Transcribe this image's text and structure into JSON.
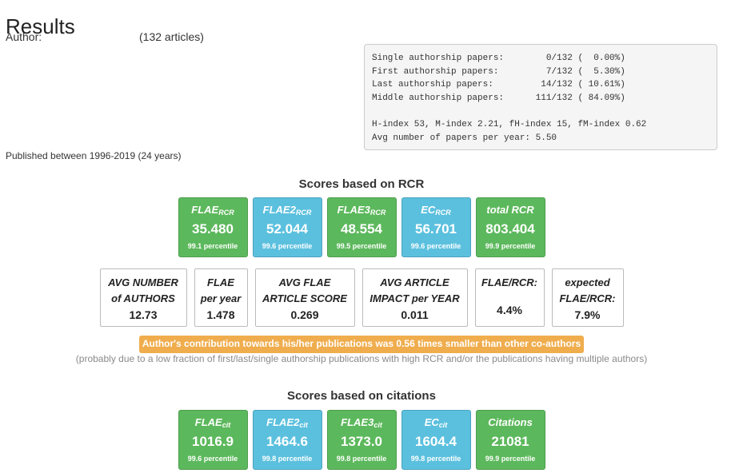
{
  "page": {
    "title": "Results",
    "author_label": "Author:",
    "article_count": "(132 articles)",
    "published": "Published between 1996-2019 (24 years)"
  },
  "stats": {
    "lines": [
      "Single authorship papers:        0/132 (  0.00%)",
      "First authorship papers:         7/132 (  5.30%)",
      "Last authorship papers:         14/132 ( 10.61%)",
      "Middle authorship papers:      111/132 ( 84.09%)",
      "",
      "H-index 53, M-index 2.21, fH-index 15, fM-index 0.62",
      "Avg number of papers per year: 5.50"
    ]
  },
  "rcr": {
    "title": "Scores based on RCR",
    "boxes": [
      {
        "label": "FLAE",
        "sub": "RCR",
        "value": "35.480",
        "percentile": "99.1 percentile",
        "color": "green"
      },
      {
        "label": "FLAE2",
        "sub": "RCR",
        "value": "52.044",
        "percentile": "99.6 percentile",
        "color": "blue"
      },
      {
        "label": "FLAE3",
        "sub": "RCR",
        "value": "48.554",
        "percentile": "99.5 percentile",
        "color": "green"
      },
      {
        "label": "EC",
        "sub": "RCR",
        "value": "56.701",
        "percentile": "99.6 percentile",
        "color": "blue"
      },
      {
        "label": "total RCR",
        "sub": "",
        "value": "803.404",
        "percentile": "99.9 percentile",
        "color": "green"
      }
    ]
  },
  "avg": {
    "boxes": [
      {
        "line1": "AVG NUMBER",
        "line2": "of AUTHORS",
        "value": "12.73"
      },
      {
        "line1": "FLAE",
        "line2": "per year",
        "value": "1.478"
      },
      {
        "line1": "AVG FLAE",
        "line2": "ARTICLE SCORE",
        "value": "0.269"
      },
      {
        "line1": "AVG ARTICLE",
        "line2": "IMPACT per YEAR",
        "value": "0.011"
      },
      {
        "line1": "FLAE/RCR:",
        "line2": "",
        "value": "4.4%"
      },
      {
        "line1": "expected",
        "line2": "FLAE/RCR:",
        "value": "7.9%"
      }
    ]
  },
  "banner": "Author's contribution towards his/her publications was 0.56 times smaller than other co-authors",
  "note": "(probably due to a low fraction of first/last/single authorship publications with high RCR and/or the publications having multiple authors)",
  "citations": {
    "title": "Scores based on citations",
    "boxes": [
      {
        "label": "FLAE",
        "sub": "cit",
        "value": "1016.9",
        "percentile": "99.6 percentile",
        "color": "green"
      },
      {
        "label": "FLAE2",
        "sub": "cit",
        "value": "1464.6",
        "percentile": "99.8 percentile",
        "color": "blue"
      },
      {
        "label": "FLAE3",
        "sub": "cit",
        "value": "1373.0",
        "percentile": "99.8 percentile",
        "color": "green"
      },
      {
        "label": "EC",
        "sub": "cit",
        "value": "1604.4",
        "percentile": "99.8 percentile",
        "color": "blue"
      },
      {
        "label": "Citations",
        "sub": "",
        "value": "21081",
        "percentile": "99.9 percentile",
        "color": "green"
      }
    ]
  }
}
